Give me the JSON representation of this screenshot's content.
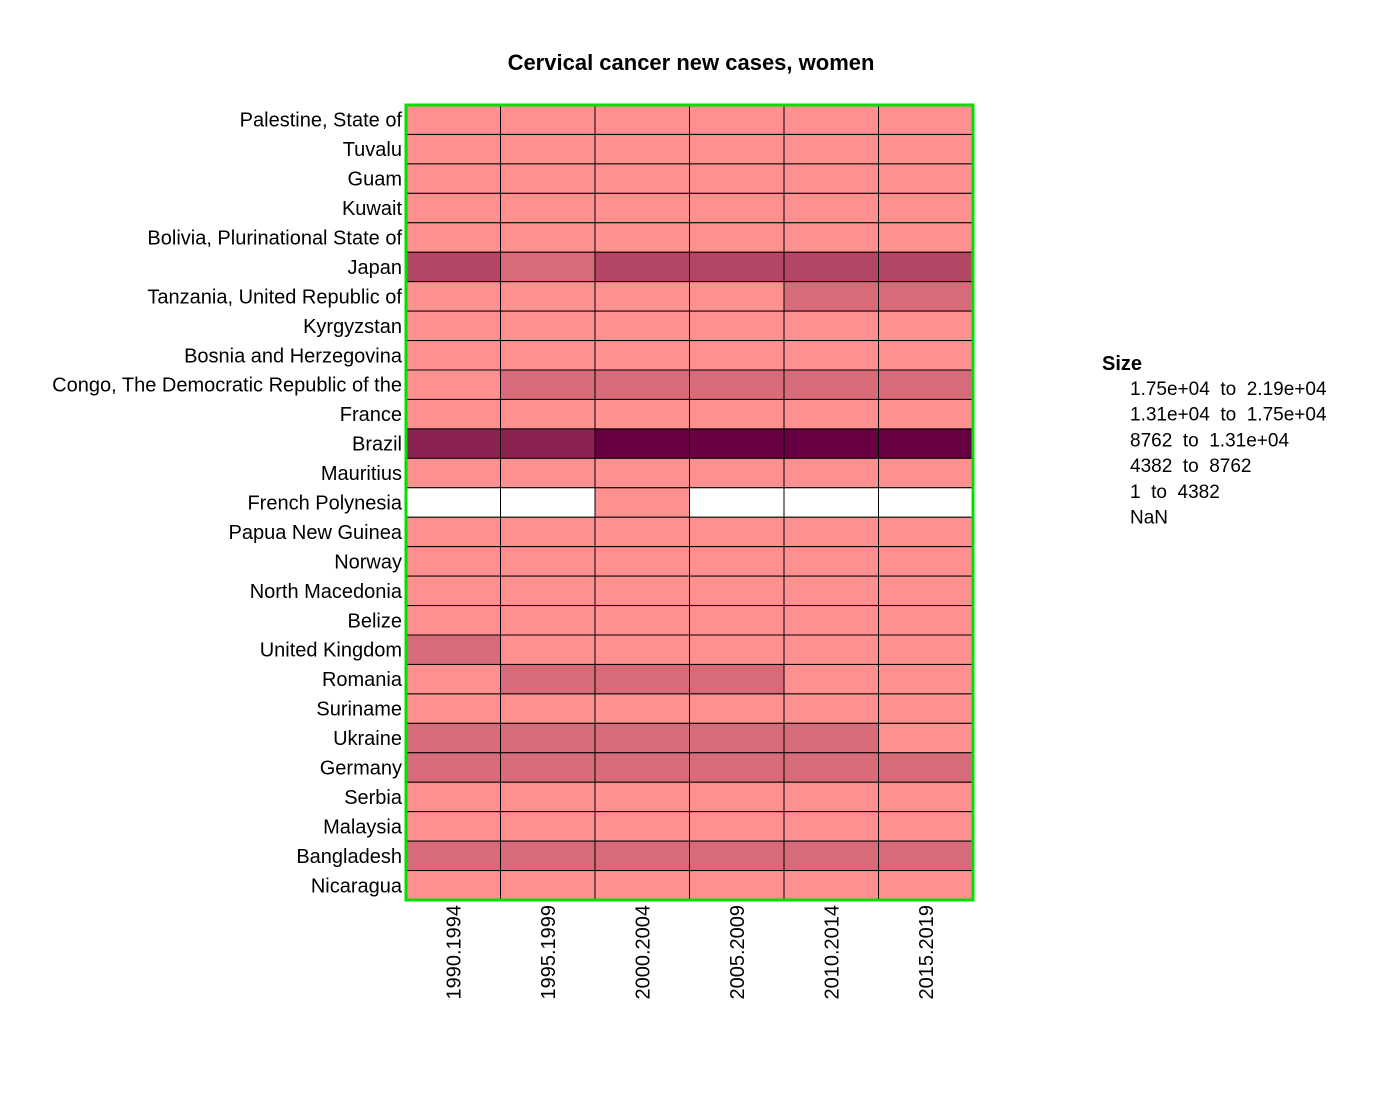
{
  "chart_data": {
    "type": "heatmap",
    "title": "Cervical cancer new cases, women",
    "xlabel": "",
    "ylabel": "",
    "columns": [
      "1990.1994",
      "1995.1999",
      "2000.2004",
      "2005.2009",
      "2010.2014",
      "2015.2019"
    ],
    "rows": [
      "Palestine, State of",
      "Tuvalu",
      "Guam",
      "Kuwait",
      "Bolivia, Plurinational State of",
      "Japan",
      "Tanzania, United Republic of",
      "Kyrgyzstan",
      "Bosnia and Herzegovina",
      "Congo, The Democratic Republic of the",
      "France",
      "Brazil",
      "Mauritius",
      "French Polynesia",
      "Papua New Guinea",
      "Norway",
      "North Macedonia",
      "Belize",
      "United Kingdom",
      "Romania",
      "Suriname",
      "Ukraine",
      "Germany",
      "Serbia",
      "Malaysia",
      "Bangladesh",
      "Nicaragua"
    ],
    "bin_index": [
      [
        1,
        1,
        1,
        1,
        1,
        1
      ],
      [
        1,
        1,
        1,
        1,
        1,
        1
      ],
      [
        1,
        1,
        1,
        1,
        1,
        1
      ],
      [
        1,
        1,
        1,
        1,
        1,
        1
      ],
      [
        1,
        1,
        1,
        1,
        1,
        1
      ],
      [
        3,
        2,
        3,
        3,
        3,
        3
      ],
      [
        1,
        1,
        1,
        1,
        2,
        2
      ],
      [
        1,
        1,
        1,
        1,
        1,
        1
      ],
      [
        1,
        1,
        1,
        1,
        1,
        1
      ],
      [
        1,
        2,
        2,
        2,
        2,
        2
      ],
      [
        1,
        1,
        1,
        1,
        1,
        1
      ],
      [
        4,
        4,
        5,
        5,
        5,
        5
      ],
      [
        1,
        1,
        1,
        1,
        1,
        1
      ],
      [
        0,
        0,
        1,
        0,
        0,
        0
      ],
      [
        1,
        1,
        1,
        1,
        1,
        1
      ],
      [
        1,
        1,
        1,
        1,
        1,
        1
      ],
      [
        1,
        1,
        1,
        1,
        1,
        1
      ],
      [
        1,
        1,
        1,
        1,
        1,
        1
      ],
      [
        2,
        1,
        1,
        1,
        1,
        1
      ],
      [
        1,
        2,
        2,
        2,
        1,
        1
      ],
      [
        1,
        1,
        1,
        1,
        1,
        1
      ],
      [
        2,
        2,
        2,
        2,
        2,
        1
      ],
      [
        2,
        2,
        2,
        2,
        2,
        2
      ],
      [
        1,
        1,
        1,
        1,
        1,
        1
      ],
      [
        1,
        1,
        1,
        1,
        1,
        1
      ],
      [
        2,
        2,
        2,
        2,
        2,
        2
      ],
      [
        1,
        1,
        1,
        1,
        1,
        1
      ]
    ],
    "legend": {
      "title": "Size",
      "position": "right",
      "items": [
        {
          "label": "1.75e+04  to  2.19e+04",
          "color": "#660040"
        },
        {
          "label": "1.31e+04  to  1.75e+04",
          "color": "#8b2252"
        },
        {
          "label": "8762  to  1.31e+04",
          "color": "#b24664"
        },
        {
          "label": "4382  to  8762",
          "color": "#d76b7a"
        },
        {
          "label": "1  to  4382",
          "color": "#ff9090"
        },
        {
          "label": "NaN",
          "color": "#ffffff"
        }
      ]
    },
    "bin_colors": [
      "#ffffff",
      "#ff9090",
      "#d76b7a",
      "#b24664",
      "#8b2252",
      "#660040"
    ],
    "frame_color": "#00e000",
    "cell_border_color": "#000000"
  }
}
